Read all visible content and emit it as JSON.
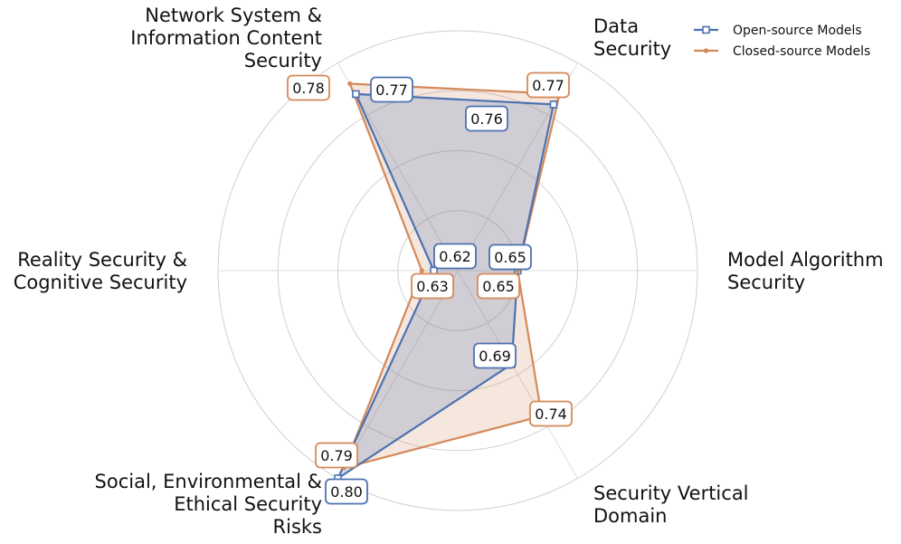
{
  "chart_data": {
    "type": "radar",
    "axes": [
      [
        "Model Algorithm",
        "Security"
      ],
      [
        "Data",
        "Security"
      ],
      [
        "Network System &",
        "Information Content",
        "Security"
      ],
      [
        "Reality Security &",
        "Cognitive Security"
      ],
      [
        "Social, Environmental &",
        "Ethical Security",
        "Risks"
      ],
      [
        "Security Vertical",
        "Domain"
      ]
    ],
    "series": [
      {
        "name": "Open-source Models",
        "values": [
          0.65,
          0.76,
          0.77,
          0.62,
          0.8,
          0.69
        ],
        "labels": [
          "0.65",
          "0.76",
          "0.77",
          "0.62",
          "0.80",
          "0.69"
        ],
        "color": "#4c72b0",
        "marker": "square"
      },
      {
        "name": "Closed-source Models",
        "values": [
          0.65,
          0.77,
          0.78,
          0.63,
          0.79,
          0.74
        ],
        "labels": [
          "0.65",
          "0.77",
          "0.78",
          "0.63",
          "0.79",
          "0.74"
        ],
        "color": "#d4895a",
        "marker": "dot"
      }
    ],
    "rlim": [
      0.6,
      0.8
    ],
    "grid": true,
    "legend": "top-right"
  }
}
